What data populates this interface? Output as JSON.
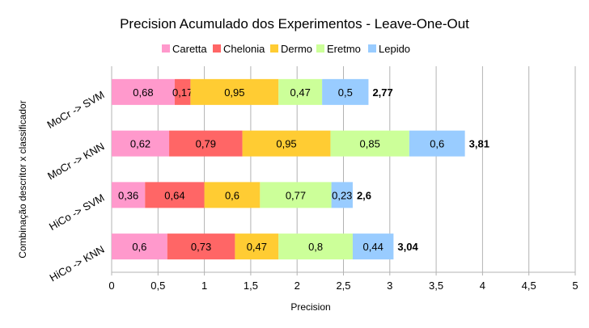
{
  "chart_data": {
    "type": "bar",
    "orientation": "horizontal",
    "stacked": true,
    "title": "Precision Acumulado dos Experimentos - Leave-One-Out",
    "xlabel": "Precision",
    "ylabel": "Combinação descritor x classificador",
    "xlim": [
      0,
      5
    ],
    "xticks": [
      "0",
      "0,5",
      "1",
      "1,5",
      "2",
      "2,5",
      "3",
      "3,5",
      "4",
      "4,5",
      "5"
    ],
    "xtick_values": [
      0,
      0.5,
      1,
      1.5,
      2,
      2.5,
      3,
      3.5,
      4,
      4.5,
      5
    ],
    "grid": "vertical",
    "legend_position": "top",
    "categories": [
      "MoCr -> SVM",
      "MoCr -> KNN",
      "HiCo -> SVM",
      "HiCo -> KNN"
    ],
    "series": [
      {
        "name": "Caretta",
        "color": "#ff99cc",
        "values": [
          0.68,
          0.62,
          0.36,
          0.6
        ],
        "labels": [
          "0,68",
          "0,62",
          "0,36",
          "0,6"
        ]
      },
      {
        "name": "Chelonia",
        "color": "#ff6666",
        "values": [
          0.17,
          0.79,
          0.64,
          0.73
        ],
        "labels": [
          "0,17",
          "0,79",
          "0,64",
          "0,73"
        ]
      },
      {
        "name": "Dermo",
        "color": "#ffcc33",
        "values": [
          0.95,
          0.95,
          0.6,
          0.47
        ],
        "labels": [
          "0,95",
          "0,95",
          "0,6",
          "0,47"
        ]
      },
      {
        "name": "Eretmo",
        "color": "#ccff99",
        "values": [
          0.47,
          0.85,
          0.77,
          0.8
        ],
        "labels": [
          "0,47",
          "0,85",
          "0,77",
          "0,8"
        ]
      },
      {
        "name": "Lepido",
        "color": "#99ccff",
        "values": [
          0.5,
          0.6,
          0.23,
          0.44
        ],
        "labels": [
          "0,5",
          "0,6",
          "0,23",
          "0,44"
        ]
      }
    ],
    "totals": [
      2.77,
      3.81,
      2.6,
      3.04
    ],
    "total_labels": [
      "2,77",
      "3,81",
      "2,6",
      "3,04"
    ]
  }
}
